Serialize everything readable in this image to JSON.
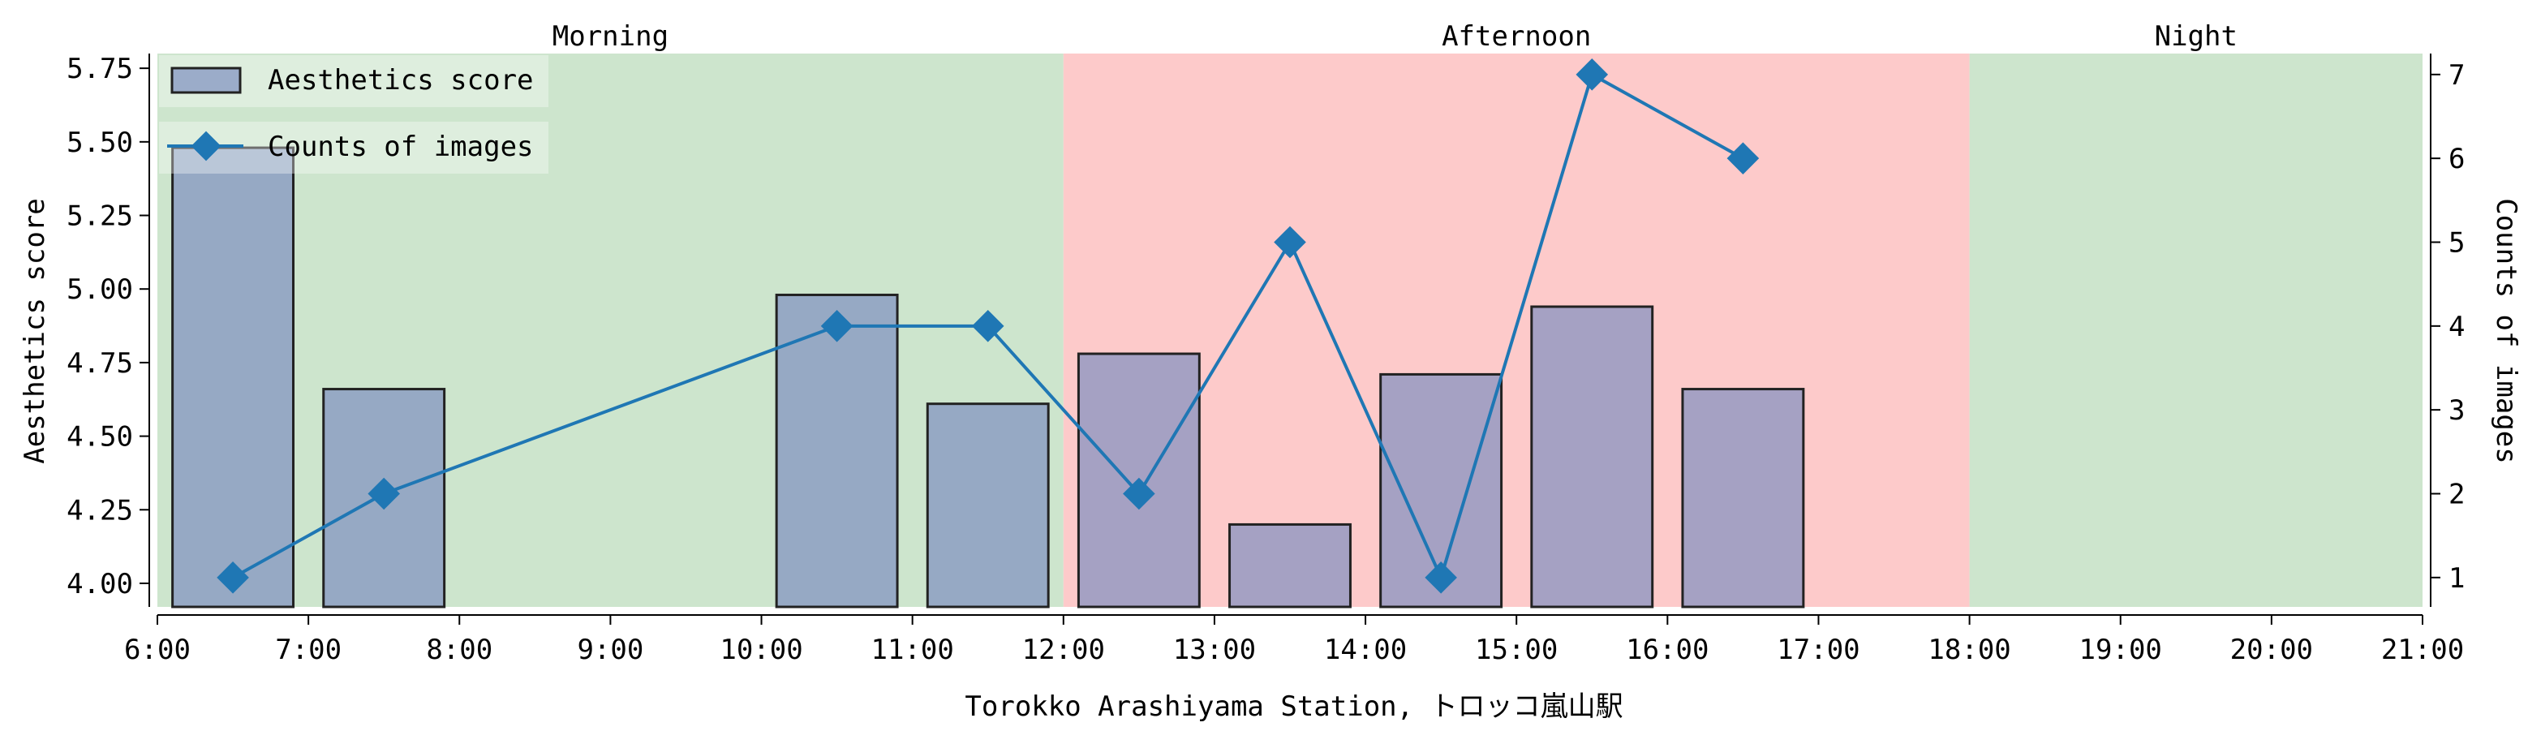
{
  "chart_data": {
    "type": "bar",
    "xlabel": "Torokko Arashiyama Station, トロッコ嵐山駅",
    "ylabel": "Aesthetics score",
    "y2label": "Counts of images",
    "xlim": [
      6,
      21
    ],
    "ylim": [
      3.92,
      5.8
    ],
    "y2lim": [
      0.65,
      7.25
    ],
    "x_ticks": [
      6,
      7,
      8,
      9,
      10,
      11,
      12,
      13,
      14,
      15,
      16,
      17,
      18,
      19,
      20,
      21
    ],
    "x_tick_labels": [
      "6:00",
      "7:00",
      "8:00",
      "9:00",
      "10:00",
      "11:00",
      "12:00",
      "13:00",
      "14:00",
      "15:00",
      "16:00",
      "17:00",
      "18:00",
      "19:00",
      "20:00",
      "21:00"
    ],
    "y_ticks": [
      4.0,
      4.25,
      4.5,
      4.75,
      5.0,
      5.25,
      5.5,
      5.75
    ],
    "y_tick_labels": [
      "4.00",
      "4.25",
      "4.50",
      "4.75",
      "5.00",
      "5.25",
      "5.50",
      "5.75"
    ],
    "y2_ticks": [
      1,
      2,
      3,
      4,
      5,
      6,
      7
    ],
    "y2_tick_labels": [
      "1",
      "2",
      "3",
      "4",
      "5",
      "6",
      "7"
    ],
    "periods": [
      {
        "label": "Morning",
        "start": 6,
        "end": 12,
        "color": "#cde5cd"
      },
      {
        "label": "Afternoon",
        "start": 12,
        "end": 18,
        "color": "#fdcaca"
      },
      {
        "label": "Night",
        "start": 18,
        "end": 21,
        "color": "#cde5cd"
      }
    ],
    "series": [
      {
        "name": "Aesthetics score",
        "kind": "bar",
        "color": "#7f90c0",
        "x": [
          6.5,
          7.5,
          10.5,
          11.5,
          12.5,
          13.5,
          14.5,
          15.5,
          16.5
        ],
        "values": [
          5.48,
          4.66,
          4.98,
          4.61,
          4.78,
          4.2,
          4.71,
          4.94,
          4.66
        ]
      },
      {
        "name": "Counts of images",
        "kind": "line",
        "axis": "right",
        "color": "#1f77b4",
        "x": [
          6.5,
          7.5,
          10.5,
          11.5,
          12.5,
          13.5,
          14.5,
          15.5,
          16.5
        ],
        "values": [
          1,
          2,
          4,
          4,
          2,
          5,
          1,
          7,
          6
        ]
      }
    ],
    "legend_position": "top-left",
    "grid": false
  }
}
